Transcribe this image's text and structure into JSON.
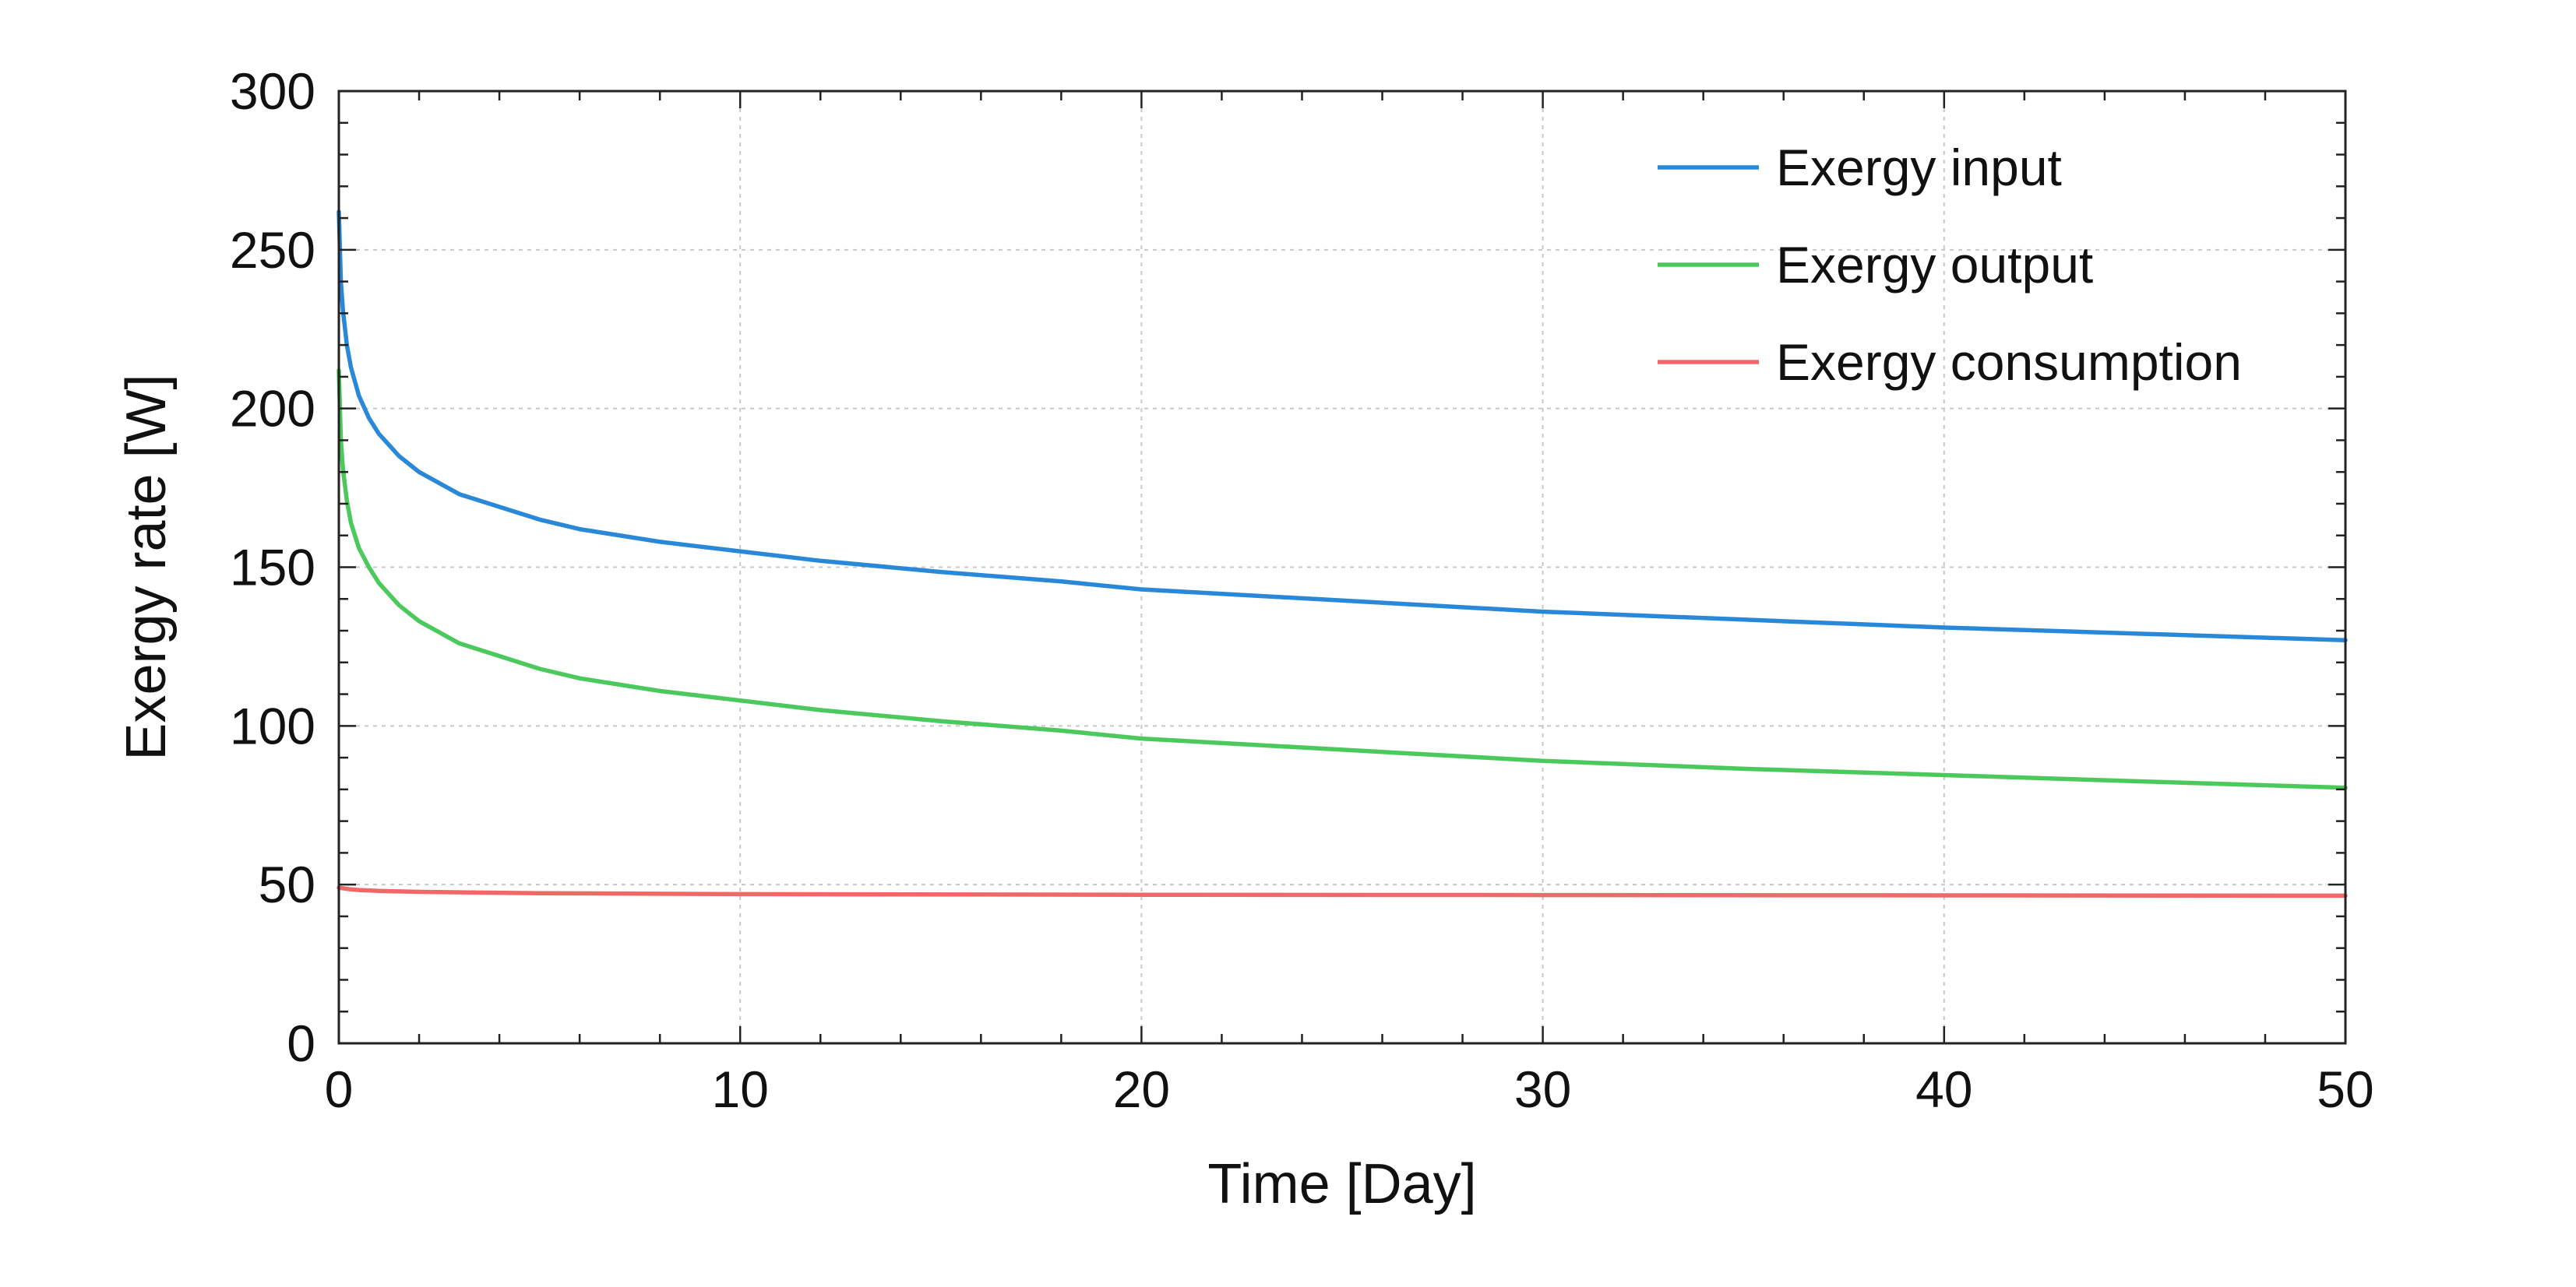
{
  "chart_data": {
    "type": "line",
    "xlabel": "Time [Day]",
    "ylabel": "Exergy rate [W]",
    "xlim": [
      0,
      50
    ],
    "ylim": [
      0,
      300
    ],
    "x_ticks": [
      0,
      10,
      20,
      30,
      40,
      50
    ],
    "y_ticks": [
      0,
      50,
      100,
      150,
      200,
      250,
      300
    ],
    "x_tick_labels": [
      "0",
      "10",
      "20",
      "30",
      "40",
      "50"
    ],
    "y_tick_labels": [
      "0",
      "50",
      "100",
      "150",
      "200",
      "250",
      "300"
    ],
    "grid": true,
    "legend_position": "top-right",
    "series": [
      {
        "name": "Exergy input",
        "color": "#2a88d8",
        "x": [
          0,
          0.05,
          0.1,
          0.2,
          0.3,
          0.5,
          0.75,
          1,
          1.5,
          2,
          3,
          4,
          5,
          6,
          8,
          10,
          12,
          15,
          18,
          20,
          25,
          30,
          35,
          40,
          45,
          50
        ],
        "y": [
          262,
          240,
          231,
          220,
          213,
          204,
          197,
          192,
          185,
          180,
          173,
          169,
          165,
          162,
          158,
          155,
          152,
          148.5,
          145.5,
          143,
          139.5,
          136,
          133.5,
          131,
          129,
          127
        ]
      },
      {
        "name": "Exergy output",
        "color": "#4cc95c",
        "x": [
          0,
          0.05,
          0.1,
          0.2,
          0.3,
          0.5,
          0.75,
          1,
          1.5,
          2,
          3,
          4,
          5,
          6,
          8,
          10,
          12,
          15,
          18,
          20,
          25,
          30,
          35,
          40,
          45,
          50
        ],
        "y": [
          212,
          190,
          181,
          171,
          164,
          156,
          150,
          145,
          138,
          133,
          126,
          122,
          118,
          115,
          111,
          108,
          105,
          101.5,
          98.5,
          96,
          92.5,
          89,
          86.5,
          84.5,
          82.5,
          80.5
        ]
      },
      {
        "name": "Exergy consumption",
        "color": "#f06868",
        "x": [
          0,
          0.3,
          0.5,
          1,
          2,
          5,
          10,
          20,
          30,
          40,
          50
        ],
        "y": [
          49,
          48.5,
          48.3,
          48,
          47.7,
          47.3,
          47,
          46.8,
          46.7,
          46.6,
          46.5
        ]
      }
    ]
  }
}
